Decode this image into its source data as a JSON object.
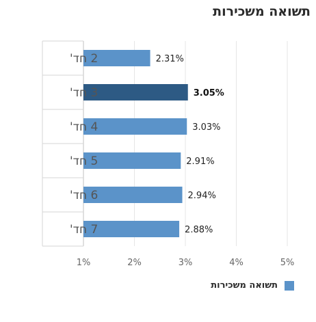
{
  "chart_data": {
    "type": "bar",
    "orientation": "horizontal",
    "title": "תשואה משכירות",
    "categories": [
      "2 חד'",
      "3 חד'",
      "4 חד'",
      "5 חד'",
      "6 חד'",
      "7 חד'"
    ],
    "series": [
      {
        "name": "תשואה משכירות",
        "values": [
          2.31,
          3.05,
          3.03,
          2.91,
          2.94,
          2.88
        ]
      }
    ],
    "value_labels": [
      "2.31%",
      "3.05%",
      "3.03%",
      "2.91%",
      "2.94%",
      "2.88%"
    ],
    "highlight_index": 1,
    "xlim": [
      1,
      5
    ],
    "xticks": [
      1,
      2,
      3,
      4,
      5
    ],
    "xtick_labels": [
      "1%",
      "2%",
      "3%",
      "4%",
      "5%"
    ],
    "grid": true,
    "legend_position": "bottom-right",
    "colors": {
      "bar": "#5b93c9",
      "highlight": "#2d5a84",
      "grid": "#e6e6e6",
      "axis": "#d6d6d6"
    }
  }
}
